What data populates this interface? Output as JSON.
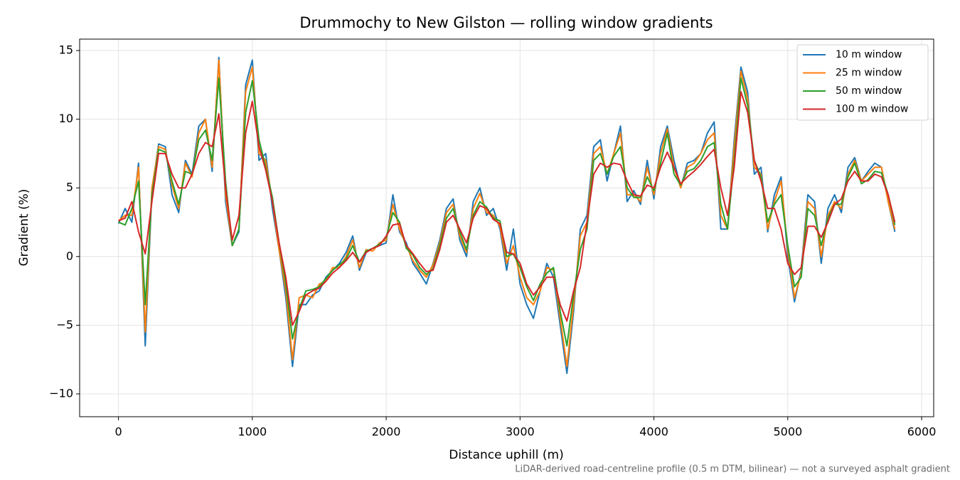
{
  "chart_data": {
    "type": "line",
    "title": "Drummochy to New Gilston — rolling window gradients",
    "xlabel": "Distance uphill (m)",
    "ylabel": "Gradient (%)",
    "footnote": "LiDAR-derived road-centreline profile (0.5 m DTM, bilinear) — not a surveyed asphalt gradient",
    "x": [
      0,
      50,
      100,
      150,
      200,
      250,
      300,
      350,
      400,
      450,
      500,
      550,
      600,
      650,
      700,
      750,
      800,
      850,
      900,
      950,
      1000,
      1050,
      1100,
      1150,
      1200,
      1250,
      1300,
      1350,
      1400,
      1450,
      1500,
      1550,
      1600,
      1650,
      1700,
      1750,
      1800,
      1850,
      1900,
      1950,
      2000,
      2050,
      2100,
      2150,
      2200,
      2250,
      2300,
      2350,
      2400,
      2450,
      2500,
      2550,
      2600,
      2650,
      2700,
      2750,
      2800,
      2850,
      2900,
      2950,
      3000,
      3050,
      3100,
      3150,
      3200,
      3250,
      3300,
      3350,
      3400,
      3450,
      3500,
      3550,
      3600,
      3650,
      3700,
      3750,
      3800,
      3850,
      3900,
      3950,
      4000,
      4050,
      4100,
      4150,
      4200,
      4250,
      4300,
      4350,
      4400,
      4450,
      4500,
      4550,
      4600,
      4650,
      4700,
      4750,
      4800,
      4850,
      4900,
      4950,
      5000,
      5050,
      5100,
      5150,
      5200,
      5250,
      5300,
      5350,
      5400,
      5450,
      5500,
      5550,
      5600,
      5650,
      5700,
      5750,
      5800
    ],
    "series": [
      {
        "name": "10 m window",
        "color": "#1f77b4",
        "values": [
          2.4,
          3.5,
          2.5,
          6.8,
          -6.5,
          4.8,
          8.2,
          8.0,
          4.5,
          3.2,
          7.0,
          6.0,
          9.5,
          10.0,
          6.2,
          14.5,
          4.0,
          0.8,
          1.8,
          12.5,
          14.3,
          7.0,
          7.5,
          3.5,
          0.5,
          -3.0,
          -8.0,
          -3.5,
          -3.5,
          -2.8,
          -2.5,
          -1.5,
          -1.0,
          -0.5,
          0.3,
          1.5,
          -1.0,
          0.3,
          0.6,
          0.8,
          1.0,
          4.5,
          1.8,
          1.0,
          -0.5,
          -1.2,
          -2.0,
          -0.5,
          1.2,
          3.5,
          4.2,
          1.2,
          0.0,
          4.0,
          5.0,
          3.0,
          3.5,
          2.0,
          -1.0,
          2.0,
          -2.0,
          -3.5,
          -4.5,
          -2.5,
          -0.5,
          -1.5,
          -5.0,
          -8.5,
          -4.0,
          2.0,
          3.0,
          8.0,
          8.5,
          5.5,
          7.5,
          9.5,
          4.0,
          4.8,
          3.8,
          7.0,
          4.2,
          8.0,
          9.5,
          7.0,
          5.0,
          6.8,
          7.0,
          7.5,
          9.0,
          9.8,
          2.0,
          2.0,
          8.5,
          13.8,
          12.0,
          6.0,
          6.5,
          1.8,
          4.5,
          5.8,
          0.0,
          -3.3,
          -1.0,
          4.5,
          4.0,
          -0.5,
          3.5,
          4.5,
          3.2,
          6.5,
          7.2,
          5.5,
          6.2,
          6.8,
          6.5,
          4.0,
          1.8
        ]
      },
      {
        "name": "25 m window",
        "color": "#ff7f0e",
        "values": [
          2.6,
          3.0,
          3.0,
          6.5,
          -5.5,
          5.0,
          8.0,
          7.8,
          5.2,
          3.5,
          6.8,
          5.8,
          9.0,
          10.0,
          6.5,
          14.3,
          4.5,
          0.8,
          2.0,
          12.0,
          13.8,
          7.5,
          7.0,
          4.0,
          0.5,
          -2.5,
          -7.5,
          -3.0,
          -2.8,
          -3.0,
          -2.0,
          -1.8,
          -0.8,
          -0.8,
          0.0,
          1.2,
          -0.8,
          0.5,
          0.4,
          1.0,
          1.2,
          3.8,
          2.0,
          0.8,
          -0.3,
          -1.0,
          -1.5,
          -0.6,
          1.0,
          3.2,
          3.8,
          1.5,
          0.3,
          3.5,
          4.6,
          3.2,
          3.0,
          2.2,
          -0.5,
          0.8,
          -1.5,
          -3.0,
          -3.5,
          -2.5,
          -0.8,
          -1.0,
          -4.5,
          -8.0,
          -3.5,
          1.5,
          2.5,
          7.5,
          8.0,
          6.0,
          7.5,
          9.0,
          4.5,
          4.5,
          4.0,
          6.5,
          4.5,
          7.5,
          9.3,
          6.5,
          5.0,
          6.5,
          6.8,
          7.5,
          8.5,
          9.0,
          3.0,
          2.0,
          8.0,
          13.5,
          11.5,
          6.5,
          6.0,
          2.0,
          4.0,
          5.5,
          0.5,
          -3.0,
          -1.2,
          4.0,
          3.5,
          0.0,
          3.0,
          4.0,
          3.5,
          6.0,
          7.0,
          5.5,
          6.0,
          6.5,
          6.5,
          4.0,
          2.0
        ]
      },
      {
        "name": "50 m window",
        "color": "#2ca02c",
        "values": [
          2.5,
          2.3,
          3.5,
          5.5,
          -3.5,
          4.5,
          7.8,
          7.6,
          5.5,
          3.8,
          6.2,
          6.0,
          8.5,
          9.2,
          7.0,
          13.0,
          5.5,
          0.8,
          2.0,
          10.5,
          12.8,
          8.5,
          6.5,
          4.3,
          1.0,
          -2.0,
          -6.0,
          -3.8,
          -2.5,
          -2.4,
          -2.2,
          -1.6,
          -1.0,
          -0.6,
          -0.2,
          0.8,
          -0.4,
          0.4,
          0.6,
          0.9,
          1.4,
          3.2,
          2.5,
          0.6,
          0.1,
          -0.8,
          -1.3,
          -0.9,
          0.8,
          2.8,
          3.5,
          1.8,
          0.5,
          3.0,
          4.0,
          3.6,
          2.8,
          2.6,
          0.0,
          0.2,
          -0.8,
          -2.2,
          -3.2,
          -2.0,
          -1.2,
          -0.8,
          -4.0,
          -6.5,
          -2.8,
          0.5,
          2.0,
          7.0,
          7.5,
          6.0,
          7.3,
          8.0,
          5.0,
          4.3,
          4.3,
          5.8,
          4.8,
          6.8,
          9.0,
          6.0,
          5.2,
          6.2,
          6.4,
          7.0,
          8.0,
          8.3,
          3.8,
          2.0,
          7.0,
          13.0,
          11.0,
          7.0,
          5.8,
          2.5,
          3.8,
          4.5,
          0.8,
          -2.2,
          -1.5,
          3.5,
          3.0,
          0.8,
          2.8,
          3.8,
          3.8,
          5.8,
          6.8,
          5.3,
          5.6,
          6.2,
          6.1,
          4.5,
          2.3
        ]
      },
      {
        "name": "100 m window",
        "color": "#d62728",
        "values": [
          2.6,
          2.8,
          4.0,
          1.8,
          0.2,
          4.0,
          7.5,
          7.5,
          6.0,
          5.0,
          5.0,
          6.0,
          7.5,
          8.3,
          8.0,
          10.4,
          5.0,
          1.2,
          3.0,
          9.0,
          11.3,
          8.0,
          6.3,
          4.0,
          1.0,
          -1.5,
          -5.0,
          -4.0,
          -2.8,
          -2.5,
          -2.3,
          -1.8,
          -1.2,
          -0.8,
          -0.3,
          0.3,
          -0.4,
          0.3,
          0.6,
          0.8,
          1.5,
          2.3,
          2.4,
          0.8,
          0.2,
          -0.5,
          -1.1,
          -1.0,
          0.5,
          2.5,
          3.0,
          2.0,
          1.0,
          2.8,
          3.7,
          3.5,
          2.7,
          2.4,
          0.3,
          0.2,
          -0.5,
          -2.0,
          -2.8,
          -2.2,
          -1.5,
          -1.5,
          -3.5,
          -4.7,
          -2.5,
          -0.8,
          2.5,
          6.0,
          6.8,
          6.5,
          6.8,
          6.7,
          5.5,
          4.5,
          4.4,
          5.2,
          5.0,
          6.5,
          7.6,
          6.5,
          5.3,
          5.8,
          6.2,
          6.7,
          7.3,
          7.8,
          5.0,
          3.0,
          6.5,
          12.0,
          10.5,
          7.0,
          5.5,
          3.5,
          3.5,
          2.0,
          -0.5,
          -1.3,
          -0.8,
          2.2,
          2.2,
          1.4,
          2.5,
          3.8,
          4.2,
          5.5,
          6.2,
          5.5,
          5.5,
          6.0,
          5.8,
          4.5,
          2.5
        ]
      }
    ],
    "xlim": [
      -290,
      6090
    ],
    "xticks": [
      0,
      1000,
      2000,
      3000,
      4000,
      5000,
      6000
    ],
    "ylim": [
      -11.66,
      15.83
    ],
    "yticks": [
      {
        "value": -10,
        "label": "−10"
      },
      {
        "value": -5,
        "label": "−5"
      },
      0,
      5,
      10,
      15
    ],
    "grid": true,
    "legend": "upper right"
  }
}
